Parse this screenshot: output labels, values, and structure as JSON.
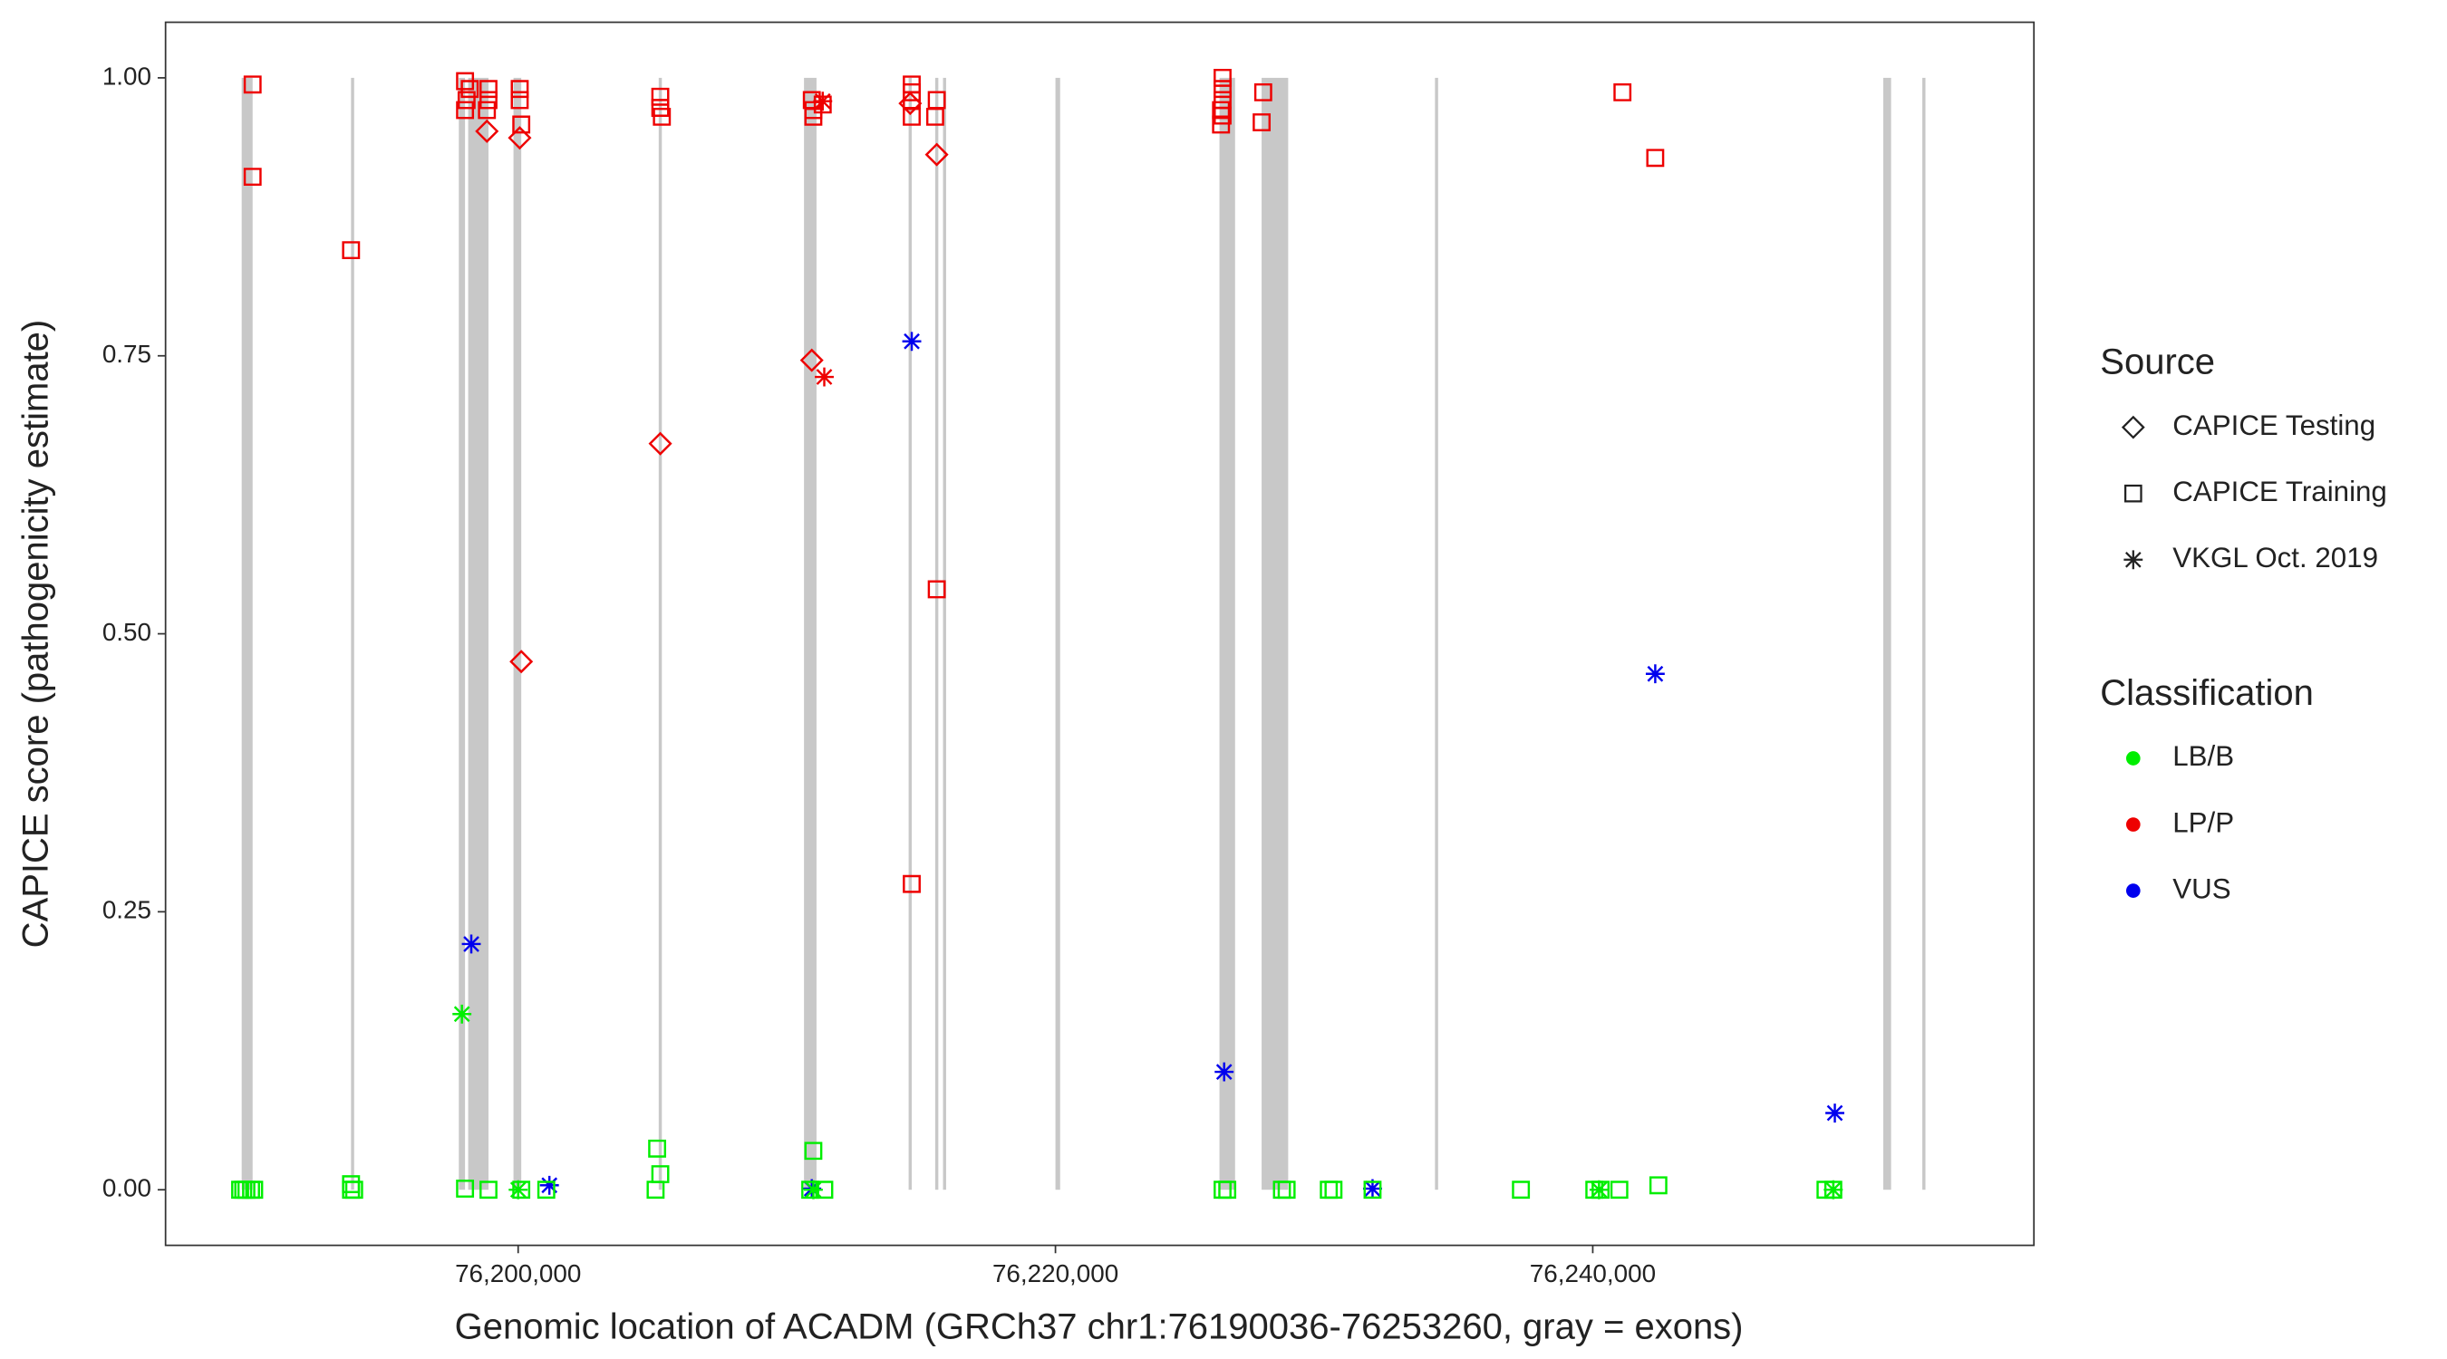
{
  "chart_data": {
    "type": "scatter",
    "x_label": "Genomic location of ACADM (GRCh37 chr1:76190036-76253260, gray = exons)",
    "y_label": "CAPICE score (pathogenicity estimate)",
    "xlim": [
      76186875,
      76256421
    ],
    "ylim": [
      -0.05,
      1.05
    ],
    "xticks": [
      {
        "value": 76200000,
        "label": "76,200,000"
      },
      {
        "value": 76220000,
        "label": "76,220,000"
      },
      {
        "value": 76240000,
        "label": "76,240,000"
      }
    ],
    "yticks": [
      {
        "value": 0,
        "label": "0.00"
      },
      {
        "value": 0.25,
        "label": "0.25"
      },
      {
        "value": 0.5,
        "label": "0.50"
      },
      {
        "value": 0.75,
        "label": "0.75"
      },
      {
        "value": 1,
        "label": "1.00"
      }
    ],
    "exon_color": "#c8c8c8",
    "exons": [
      [
        76189709,
        76190116
      ],
      [
        76193779,
        76193895
      ],
      [
        76197791,
        76198023
      ],
      [
        76198140,
        76198895
      ],
      [
        76199826,
        76200116
      ],
      [
        76205233,
        76205349
      ],
      [
        76210640,
        76211105
      ],
      [
        76214535,
        76214651
      ],
      [
        76215523,
        76215640
      ],
      [
        76215814,
        76215930
      ],
      [
        76220000,
        76220174
      ],
      [
        76226105,
        76226686
      ],
      [
        76227674,
        76228663
      ],
      [
        76234128,
        76234244
      ],
      [
        76250814,
        76251105
      ],
      [
        76252267,
        76252384
      ]
    ],
    "source_title": "Source",
    "sources": [
      {
        "name": "CAPICE Testing",
        "shape": "diamond"
      },
      {
        "name": "CAPICE Training",
        "shape": "square"
      },
      {
        "name": "VKGL Oct. 2019",
        "shape": "asterisk"
      }
    ],
    "classification_title": "Classification",
    "classifications": [
      {
        "name": "LB/B",
        "color": "#00ee00"
      },
      {
        "name": "LP/P",
        "color": "#ee0000"
      },
      {
        "name": "VUS",
        "color": "#0000ee"
      }
    ],
    "series": [
      {
        "source": "CAPICE Training",
        "classification": "LP/P",
        "x": [
          76190116,
          76190116,
          76193779,
          76198023,
          76198198,
          76198081,
          76198023,
          76198895,
          76198895,
          76198837,
          76200058,
          76200058,
          76200116,
          76205291,
          76205291,
          76205349,
          76210930,
          76210988,
          76211337,
          76210988,
          76214651,
          76214651,
          76214651,
          76214651,
          76214651,
          76215581,
          76215523,
          76215581,
          76226221,
          76226221,
          76226221,
          76226163,
          76226221,
          76226163,
          76227733,
          76227675,
          76241105,
          76242326
        ],
        "values": [
          0.994,
          0.911,
          0.845,
          0.997,
          0.99,
          0.98,
          0.971,
          0.99,
          0.98,
          0.971,
          0.99,
          0.98,
          0.958,
          0.983,
          0.973,
          0.965,
          0.98,
          0.971,
          0.976,
          0.965,
          0.994,
          0.987,
          0.98,
          0.965,
          0.275,
          0.98,
          0.965,
          0.54,
          1.0,
          0.99,
          0.98,
          0.971,
          0.966,
          0.958,
          0.987,
          0.96,
          0.987,
          0.928
        ]
      },
      {
        "source": "CAPICE Testing",
        "classification": "LP/P",
        "x": [
          76198837,
          76200058,
          76200116,
          76205291,
          76210930,
          76214593,
          76215581
        ],
        "values": [
          0.952,
          0.946,
          0.475,
          0.671,
          0.746,
          0.977,
          0.931
        ]
      },
      {
        "source": "VKGL Oct. 2019",
        "classification": "LP/P",
        "x": [
          76211337,
          76211395
        ],
        "values": [
          0.979,
          0.731
        ]
      },
      {
        "source": "VKGL Oct. 2019",
        "classification": "VUS",
        "x": [
          76198256,
          76201163,
          76210930,
          76214651,
          76226279,
          76231803,
          76242326,
          76249011
        ],
        "values": [
          0.221,
          0.004,
          0.001,
          0.763,
          0.106,
          0.001,
          0.464,
          0.069
        ]
      },
      {
        "source": "VKGL Oct. 2019",
        "classification": "LB/B",
        "x": [
          76197907,
          76200000,
          76210988,
          76240233,
          76248953
        ],
        "values": [
          0.158,
          0,
          0,
          0,
          0
        ]
      },
      {
        "source": "CAPICE Training",
        "classification": "LB/B",
        "x": [
          76189651,
          76189767,
          76189884,
          76190058,
          76190174,
          76193779,
          76193779,
          76193895,
          76198023,
          76198895,
          76200116,
          76201047,
          76205174,
          76205291,
          76205116,
          76210988,
          76210872,
          76211395,
          76226221,
          76226395,
          76228430,
          76228605,
          76230175,
          76230349,
          76231803,
          76237326,
          76240058,
          76240291,
          76240989,
          76242442,
          76248663,
          76248953
        ],
        "values": [
          0,
          0,
          0,
          0,
          0,
          0.005,
          0,
          0,
          0.001,
          0,
          0,
          0,
          0.037,
          0.014,
          0,
          0.035,
          0,
          0,
          0,
          0,
          0,
          0,
          0,
          0,
          0,
          0,
          0,
          0,
          0,
          0.004,
          0,
          0
        ]
      }
    ]
  }
}
